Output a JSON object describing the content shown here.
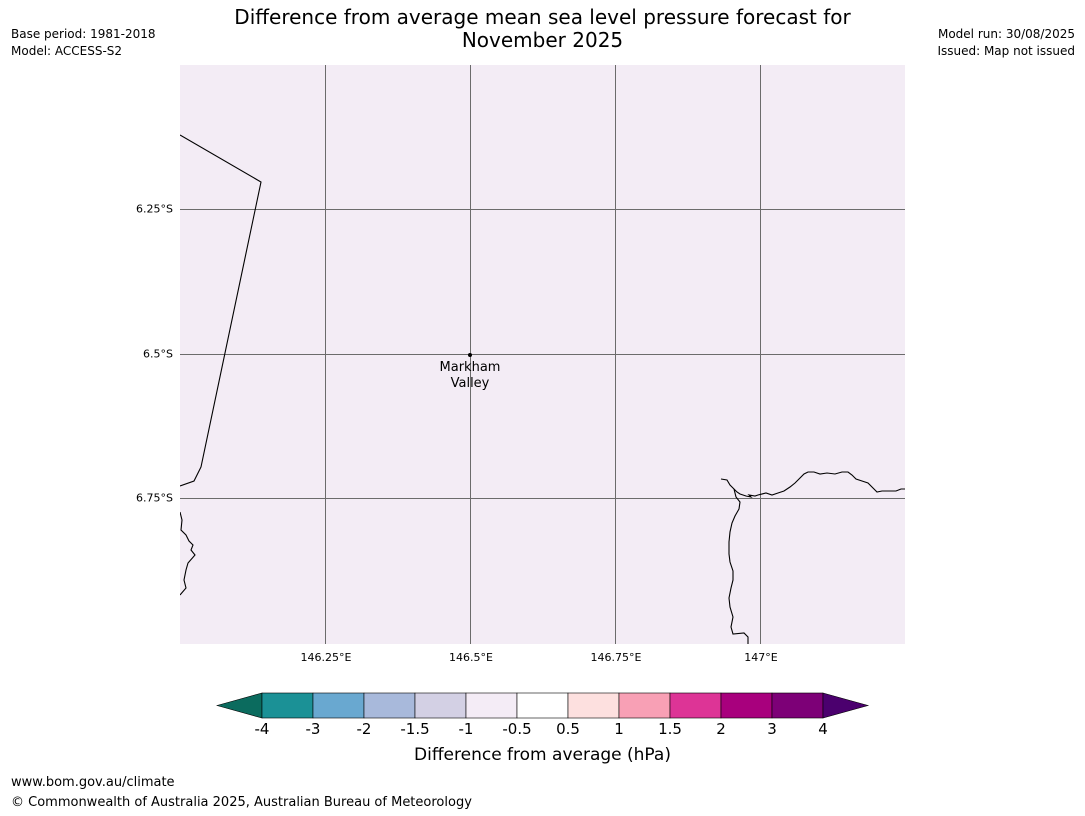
{
  "header": {
    "title_line1": "Difference from average mean sea level pressure forecast for",
    "title_line2": "November 2025",
    "base_period": "Base period: 1981-2018",
    "model": "Model: ACCESS-S2",
    "model_run": "Model run: 30/08/2025",
    "issued": "Issued: Map not issued"
  },
  "map": {
    "background_color": "#f3ecf5",
    "lat_labels": [
      "6.25°S",
      "6.5°S",
      "6.75°S"
    ],
    "lon_labels": [
      "146.25°E",
      "146.5°E",
      "146.75°E",
      "147°E"
    ],
    "place": {
      "name_line1": "Markham",
      "name_line2": "Valley"
    }
  },
  "colorbar": {
    "title": "Difference from average (hPa)",
    "ticks": [
      "-4",
      "-3",
      "-2",
      "-1.5",
      "-1",
      "-0.5",
      "0.5",
      "1",
      "1.5",
      "2",
      "3",
      "4"
    ],
    "low_extend_color": "#0b6b5e",
    "high_extend_color": "#4b006e",
    "colors": [
      "#1b9196",
      "#69a8d0",
      "#a8b9db",
      "#d3d0e4",
      "#f4ecf6",
      "#ffffff",
      "#fde0df",
      "#f8a0b5",
      "#dd3496",
      "#a8007d",
      "#7d0077"
    ]
  },
  "footer": {
    "url": "www.bom.gov.au/climate",
    "copyright": "© Commonwealth of Australia 2025, Australian Bureau of Meteorology"
  }
}
